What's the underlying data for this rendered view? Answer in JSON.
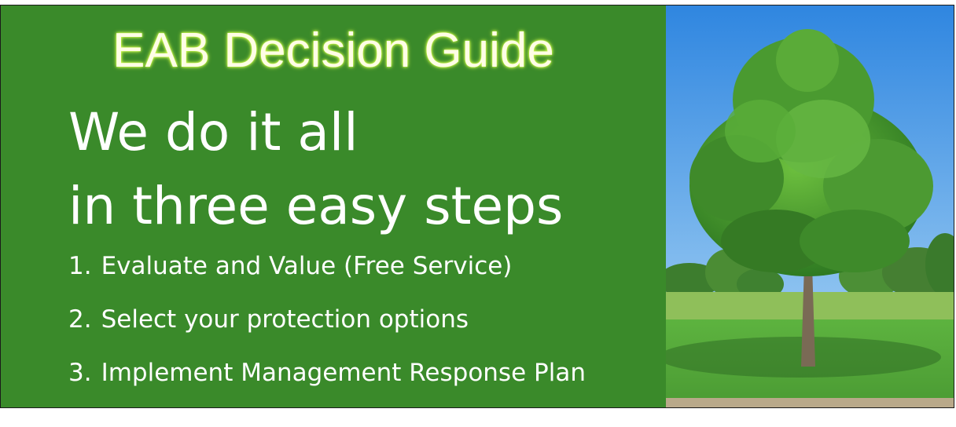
{
  "banner": {
    "title": "EAB Decision Guide",
    "headline_line1": "We do it all",
    "headline_line2": "in three easy steps",
    "steps": [
      {
        "number": "1.",
        "text": "Evaluate and Value (Free Service)"
      },
      {
        "number": "2.",
        "text": "Select your protection options"
      },
      {
        "number": "3.",
        "text": "Implement Management Response Plan"
      }
    ],
    "colors": {
      "panel_green": "#3a8a2a",
      "title_glow": "#d9ff55",
      "sky_blue": "#3f95e6",
      "grass_green": "#4fa83a"
    },
    "image": {
      "subject": "tree-photo"
    }
  }
}
